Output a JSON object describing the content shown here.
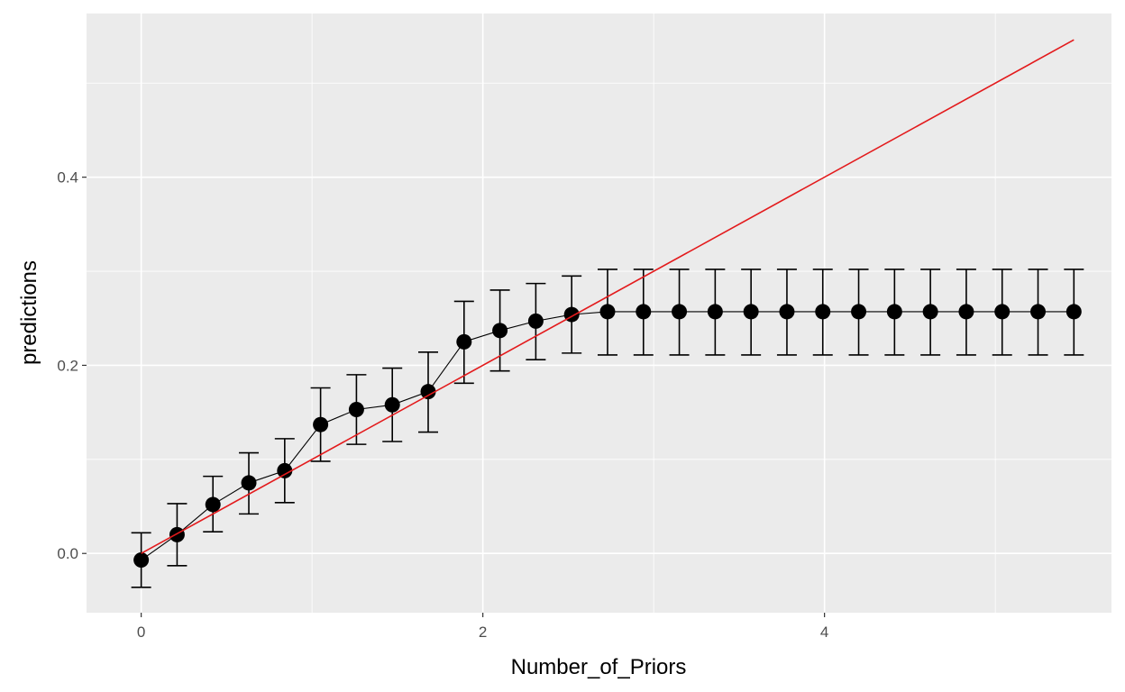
{
  "chart_data": {
    "type": "line",
    "xlabel": "Number_of_Priors",
    "ylabel": "predictions",
    "xlim": [
      -0.32,
      5.68
    ],
    "ylim": [
      -0.063,
      0.574
    ],
    "x_ticks": [
      0,
      2,
      4
    ],
    "x_tick_labels": [
      "0",
      "2",
      "4"
    ],
    "y_ticks": [
      0.0,
      0.2,
      0.4
    ],
    "y_tick_labels": [
      "0.0",
      "0.2",
      "0.4"
    ],
    "grid": true,
    "background": "#ebebeb",
    "series": [
      {
        "style": "points-with-errorbars",
        "color": "#000000",
        "points": [
          {
            "x": 0.0,
            "y": -0.007,
            "ymin": -0.036,
            "ymax": 0.022
          },
          {
            "x": 0.21,
            "y": 0.02,
            "ymin": -0.013,
            "ymax": 0.053
          },
          {
            "x": 0.42,
            "y": 0.052,
            "ymin": 0.023,
            "ymax": 0.082
          },
          {
            "x": 0.63,
            "y": 0.075,
            "ymin": 0.042,
            "ymax": 0.107
          },
          {
            "x": 0.84,
            "y": 0.088,
            "ymin": 0.054,
            "ymax": 0.122
          },
          {
            "x": 1.05,
            "y": 0.137,
            "ymin": 0.098,
            "ymax": 0.176
          },
          {
            "x": 1.26,
            "y": 0.153,
            "ymin": 0.116,
            "ymax": 0.19
          },
          {
            "x": 1.47,
            "y": 0.158,
            "ymin": 0.119,
            "ymax": 0.197
          },
          {
            "x": 1.68,
            "y": 0.172,
            "ymin": 0.129,
            "ymax": 0.214
          },
          {
            "x": 1.89,
            "y": 0.225,
            "ymin": 0.181,
            "ymax": 0.268
          },
          {
            "x": 2.1,
            "y": 0.237,
            "ymin": 0.194,
            "ymax": 0.28
          },
          {
            "x": 2.31,
            "y": 0.247,
            "ymin": 0.206,
            "ymax": 0.287
          },
          {
            "x": 2.52,
            "y": 0.254,
            "ymin": 0.213,
            "ymax": 0.295
          },
          {
            "x": 2.73,
            "y": 0.257,
            "ymin": 0.211,
            "ymax": 0.302
          },
          {
            "x": 2.94,
            "y": 0.257,
            "ymin": 0.211,
            "ymax": 0.302
          },
          {
            "x": 3.15,
            "y": 0.257,
            "ymin": 0.211,
            "ymax": 0.302
          },
          {
            "x": 3.36,
            "y": 0.257,
            "ymin": 0.211,
            "ymax": 0.302
          },
          {
            "x": 3.57,
            "y": 0.257,
            "ymin": 0.211,
            "ymax": 0.302
          },
          {
            "x": 3.78,
            "y": 0.257,
            "ymin": 0.211,
            "ymax": 0.302
          },
          {
            "x": 3.99,
            "y": 0.257,
            "ymin": 0.211,
            "ymax": 0.302
          },
          {
            "x": 4.2,
            "y": 0.257,
            "ymin": 0.211,
            "ymax": 0.302
          },
          {
            "x": 4.41,
            "y": 0.257,
            "ymin": 0.211,
            "ymax": 0.302
          },
          {
            "x": 4.62,
            "y": 0.257,
            "ymin": 0.211,
            "ymax": 0.302
          },
          {
            "x": 4.83,
            "y": 0.257,
            "ymin": 0.211,
            "ymax": 0.302
          },
          {
            "x": 5.04,
            "y": 0.257,
            "ymin": 0.211,
            "ymax": 0.302
          },
          {
            "x": 5.25,
            "y": 0.257,
            "ymin": 0.211,
            "ymax": 0.302
          },
          {
            "x": 5.46,
            "y": 0.257,
            "ymin": 0.211,
            "ymax": 0.302
          }
        ]
      },
      {
        "style": "line",
        "color": "#e31a1c",
        "points": [
          {
            "x": 0.0,
            "y": 0.0
          },
          {
            "x": 5.46,
            "y": 0.546
          }
        ]
      }
    ]
  }
}
